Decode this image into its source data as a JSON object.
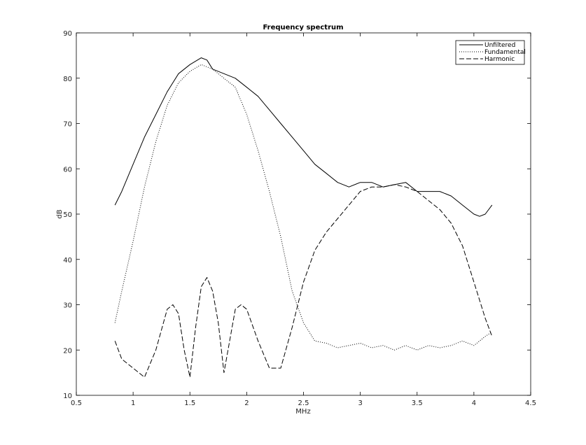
{
  "chart_data": {
    "type": "line",
    "title": "Frequency spectrum",
    "xlabel": "MHz",
    "ylabel": "dB",
    "xlim": [
      0.5,
      4.5
    ],
    "ylim": [
      10,
      90
    ],
    "xticks": [
      0.5,
      1,
      1.5,
      2,
      2.5,
      3,
      3.5,
      4,
      4.5
    ],
    "xtick_labels": [
      "0.5",
      "1",
      "1.5",
      "2",
      "2.5",
      "3",
      "3.5",
      "4",
      "4.5"
    ],
    "yticks": [
      10,
      20,
      30,
      40,
      50,
      60,
      70,
      80,
      90
    ],
    "ytick_labels": [
      "10",
      "20",
      "30",
      "40",
      "50",
      "60",
      "70",
      "80",
      "90"
    ],
    "grid": false,
    "legend_position": "top-right",
    "series": [
      {
        "name": "Unfiltered",
        "style": "solid",
        "x": [
          0.84,
          0.9,
          1.0,
          1.1,
          1.2,
          1.3,
          1.4,
          1.5,
          1.6,
          1.65,
          1.7,
          1.8,
          1.9,
          2.0,
          2.1,
          2.2,
          2.3,
          2.4,
          2.5,
          2.6,
          2.7,
          2.8,
          2.9,
          3.0,
          3.1,
          3.2,
          3.3,
          3.4,
          3.5,
          3.6,
          3.7,
          3.8,
          3.9,
          4.0,
          4.05,
          4.1,
          4.16
        ],
        "y": [
          52,
          55,
          61,
          67,
          72,
          77,
          81,
          83,
          84.5,
          84,
          82,
          81,
          80,
          78,
          76,
          73,
          70,
          67,
          64,
          61,
          59,
          57,
          56,
          57,
          57,
          56,
          56.5,
          57,
          55,
          55,
          55,
          54,
          52,
          50,
          49.5,
          50,
          52
        ]
      },
      {
        "name": "Fundamental",
        "style": "dotted",
        "x": [
          0.84,
          0.9,
          1.0,
          1.1,
          1.2,
          1.3,
          1.4,
          1.5,
          1.6,
          1.7,
          1.8,
          1.9,
          2.0,
          2.1,
          2.2,
          2.3,
          2.4,
          2.5,
          2.6,
          2.7,
          2.8,
          2.9,
          3.0,
          3.1,
          3.2,
          3.3,
          3.4,
          3.5,
          3.6,
          3.7,
          3.8,
          3.9,
          4.0,
          4.1,
          4.16
        ],
        "y": [
          26,
          33,
          44,
          56,
          66,
          74,
          79,
          81.5,
          83,
          82,
          80,
          78,
          72,
          64,
          55,
          45,
          33,
          26,
          22,
          21.5,
          20.5,
          21,
          21.5,
          20.5,
          21,
          20,
          21,
          20,
          21,
          20.5,
          21,
          22,
          21,
          23,
          24
        ]
      },
      {
        "name": "Harmonic",
        "style": "dashed",
        "x": [
          0.84,
          0.9,
          1.0,
          1.1,
          1.2,
          1.3,
          1.35,
          1.4,
          1.45,
          1.5,
          1.55,
          1.6,
          1.65,
          1.7,
          1.75,
          1.8,
          1.85,
          1.9,
          1.95,
          2.0,
          2.1,
          2.2,
          2.3,
          2.4,
          2.5,
          2.6,
          2.7,
          2.8,
          2.9,
          3.0,
          3.1,
          3.2,
          3.3,
          3.4,
          3.5,
          3.6,
          3.7,
          3.8,
          3.9,
          4.0,
          4.1,
          4.16
        ],
        "y": [
          22,
          18,
          16,
          14,
          20,
          29,
          30,
          28,
          20,
          14,
          25,
          34,
          36,
          33,
          26,
          15,
          22,
          29,
          30,
          29,
          22,
          16,
          16,
          25,
          35,
          42,
          46,
          49,
          52,
          55,
          56,
          56,
          56.5,
          56,
          55,
          53,
          51,
          48,
          43,
          35,
          27,
          23
        ]
      }
    ]
  }
}
